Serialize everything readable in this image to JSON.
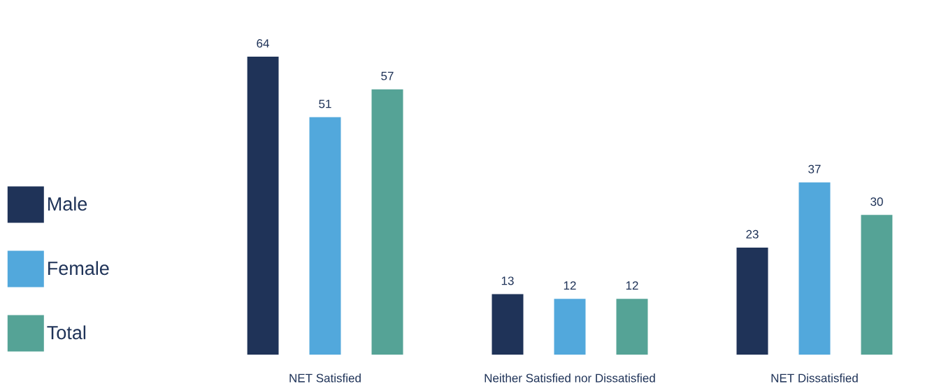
{
  "chart_data": {
    "type": "bar",
    "categories": [
      "NET Satisfied",
      "Neither Satisfied nor Dissatisfied",
      "NET Dissatisfied"
    ],
    "series": [
      {
        "name": "Male",
        "color": "#1f3358",
        "values": [
          64,
          13,
          23
        ]
      },
      {
        "name": "Female",
        "color": "#52a8dc",
        "values": [
          51,
          12,
          37
        ]
      },
      {
        "name": "Total",
        "color": "#55a396",
        "values": [
          57,
          12,
          30
        ]
      }
    ],
    "data_labels": true,
    "legend": "left"
  }
}
